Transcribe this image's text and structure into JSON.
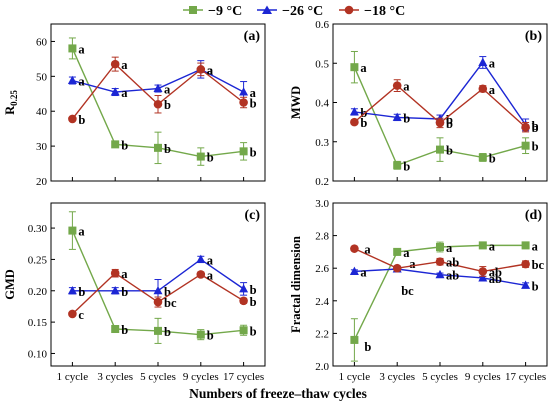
{
  "legend": {
    "placement": "top-center",
    "entries": [
      {
        "label": "−9 °C",
        "color": "#73a84a",
        "marker": "square"
      },
      {
        "label": "−26 °C",
        "color": "#1c26d4",
        "marker": "triangle"
      },
      {
        "label": "−18 °C",
        "color": "#b23323",
        "marker": "circle"
      }
    ]
  },
  "xlabel": "Numbers of freeze–thaw cycles",
  "chart_data": [
    {
      "type": "line",
      "panel": "(a)",
      "ylabel": "R0.25",
      "ylabel_main": "R",
      "ylabel_sub": "0.25",
      "categories": [
        "1 cycle",
        "3 cycles",
        "5 cycles",
        "9 cycles",
        "17 cycles"
      ],
      "ylim": [
        20,
        65
      ],
      "yticks": [
        20,
        30,
        40,
        50,
        60
      ],
      "yticklabels": [
        "20",
        "30",
        "40",
        "50",
        "60"
      ],
      "series": [
        {
          "name": "−9 °C",
          "values": [
            58,
            30.5,
            29.5,
            27,
            28.5
          ],
          "errors": [
            3,
            0.8,
            4.5,
            2.5,
            2.5
          ],
          "letters": [
            "a",
            "b",
            "b",
            "b",
            "b"
          ]
        },
        {
          "name": "−26 °C",
          "values": [
            48.8,
            45.5,
            46.5,
            52,
            45.5
          ],
          "errors": [
            1,
            1,
            1,
            2.5,
            3
          ],
          "letters": [
            "a",
            "a",
            "a",
            "a",
            "a"
          ]
        },
        {
          "name": "−18 °C",
          "values": [
            37.8,
            53.5,
            42,
            52,
            42.5
          ],
          "errors": [
            0.5,
            2,
            2.5,
            1.8,
            1.5
          ],
          "letters": [
            "b",
            "a",
            "b",
            "a",
            "b"
          ]
        }
      ]
    },
    {
      "type": "line",
      "panel": "(b)",
      "ylabel": "MWD",
      "categories": [
        "1 cycle",
        "3 cycles",
        "5 cycles",
        "9 cycles",
        "17 cycles"
      ],
      "ylim": [
        0.2,
        0.6
      ],
      "yticks": [
        0.2,
        0.3,
        0.4,
        0.5,
        0.6
      ],
      "yticklabels": [
        "0.2",
        "0.3",
        "0.4",
        "0.5",
        "0.6"
      ],
      "series": [
        {
          "name": "−9 °C",
          "values": [
            0.49,
            0.24,
            0.28,
            0.26,
            0.29
          ],
          "errors": [
            0.04,
            0.01,
            0.03,
            0.01,
            0.02
          ],
          "letters": [
            "a",
            "b",
            "b",
            "b",
            "b"
          ]
        },
        {
          "name": "−26 °C",
          "values": [
            0.376,
            0.362,
            0.358,
            0.502,
            0.343
          ],
          "errors": [
            0.008,
            0.008,
            0.01,
            0.015,
            0.015
          ],
          "letters": [
            "b",
            "b",
            "b",
            "a",
            "b"
          ]
        },
        {
          "name": "−18 °C",
          "values": [
            0.35,
            0.443,
            0.348,
            0.435,
            0.337
          ],
          "errors": [
            0.005,
            0.015,
            0.012,
            0.008,
            0.012
          ],
          "letters": [
            "b",
            "a",
            "b",
            "a",
            "b"
          ]
        }
      ]
    },
    {
      "type": "line",
      "panel": "(c)",
      "ylabel": "GMD",
      "categories": [
        "1 cycle",
        "3 cycles",
        "5 cycles",
        "9 cycles",
        "17 cycles"
      ],
      "ylim": [
        0.08,
        0.34
      ],
      "yticks": [
        0.1,
        0.15,
        0.2,
        0.25,
        0.3
      ],
      "yticklabels": [
        "0.10",
        "0.15",
        "0.20",
        "0.25",
        "0.30"
      ],
      "series": [
        {
          "name": "−9 °C",
          "values": [
            0.296,
            0.139,
            0.136,
            0.13,
            0.137
          ],
          "errors": [
            0.03,
            0.003,
            0.02,
            0.008,
            0.008
          ],
          "letters": [
            "a",
            "b",
            "b",
            "b",
            "b"
          ]
        },
        {
          "name": "−26 °C",
          "values": [
            0.2,
            0.2,
            0.2,
            0.25,
            0.203
          ],
          "errors": [
            0.005,
            0.005,
            0.018,
            0.005,
            0.01
          ],
          "letters": [
            "b",
            "b",
            "b",
            "a",
            "b"
          ]
        },
        {
          "name": "−18 °C",
          "values": [
            0.163,
            0.228,
            0.182,
            0.226,
            0.184
          ],
          "errors": [
            0.003,
            0.006,
            0.008,
            0.004,
            0.004
          ],
          "letters": [
            "c",
            "a",
            "bc",
            "a",
            "b"
          ]
        }
      ]
    },
    {
      "type": "line",
      "panel": "(d)",
      "ylabel": "Fractal dimension",
      "categories": [
        "1 cycle",
        "3 cycles",
        "5 cycles",
        "9 cycles",
        "17 cycles"
      ],
      "ylim": [
        2.0,
        3.0
      ],
      "yticks": [
        2.0,
        2.2,
        2.4,
        2.6,
        2.8,
        3.0
      ],
      "yticklabels": [
        "2.0",
        "2.2",
        "2.4",
        "2.6",
        "2.8",
        "3.0"
      ],
      "series": [
        {
          "name": "−9 °C",
          "values": [
            2.16,
            2.7,
            2.73,
            2.74,
            2.74
          ],
          "errors": [
            0.13,
            0.02,
            0.03,
            0.02,
            0.02
          ],
          "letters": [
            "b",
            "a",
            "a",
            "a",
            "a"
          ]
        },
        {
          "name": "−26 °C",
          "values": [
            2.58,
            2.595,
            2.56,
            2.54,
            2.495
          ],
          "errors": [
            0.01,
            0.01,
            0.01,
            0.01,
            0.015
          ],
          "letters": [
            "a",
            "a",
            "ab",
            "ab",
            "b"
          ]
        },
        {
          "name": "−18 °C",
          "values": [
            2.72,
            2.6,
            2.64,
            2.58,
            2.625
          ],
          "errors": [
            0.01,
            0.01,
            0.02,
            0.03,
            0.02
          ],
          "letters": [
            "a",
            "bc",
            "ab",
            "ab",
            "bc"
          ]
        }
      ]
    }
  ]
}
